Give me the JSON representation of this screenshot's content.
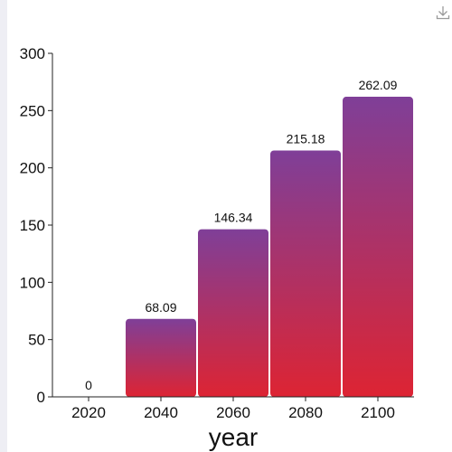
{
  "toolbar": {
    "download_icon": "download-icon"
  },
  "chart_data": {
    "type": "bar",
    "categories": [
      "2020",
      "2040",
      "2060",
      "2080",
      "2100"
    ],
    "values": [
      0,
      68.09,
      146.34,
      215.18,
      262.09
    ],
    "data_labels": [
      "0",
      "68.09",
      "146.34",
      "215.18",
      "262.09"
    ],
    "xlabel": "year",
    "ylabel": "",
    "ylim": [
      0,
      300
    ],
    "yticks": [
      "0",
      "50",
      "100",
      "150",
      "200",
      "250",
      "300"
    ],
    "grid": false,
    "legend": "none",
    "colors": {
      "bar_top": "#7f3f98",
      "bar_bottom": "#dd2433",
      "axis": "#222222"
    }
  }
}
